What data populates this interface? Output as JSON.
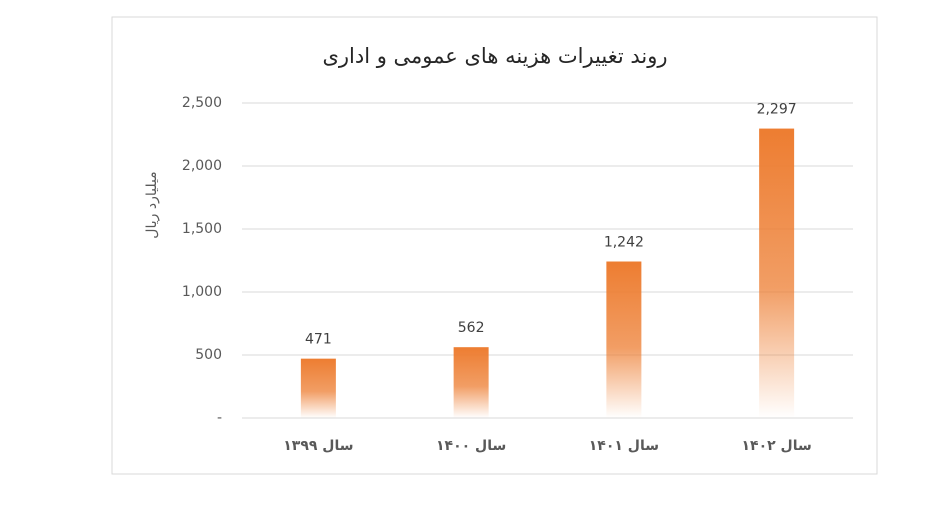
{
  "chart_data": {
    "type": "bar",
    "title": "روند تغییرات هزینه های عمومی و اداری",
    "y_label": "میلیارد ریال",
    "categories": [
      "سال ۱۳۹۹",
      "سال ۱۴۰۰",
      "سال ۱۴۰۱",
      "سال ۱۴۰۲"
    ],
    "values": [
      471,
      562,
      1242,
      2297
    ],
    "value_labels": [
      "471",
      "562",
      "1,242",
      "2,297"
    ],
    "color": "#ed7d31",
    "ylim": [
      0,
      2500
    ],
    "yticks": [
      {
        "value": 0,
        "label": "-"
      },
      500,
      {
        "value": 1000,
        "label": "1,000"
      },
      {
        "value": 1500,
        "label": "1,500"
      },
      {
        "value": 2000,
        "label": "2,000"
      },
      {
        "value": 2500,
        "label": "2,500"
      }
    ],
    "grid": true
  }
}
